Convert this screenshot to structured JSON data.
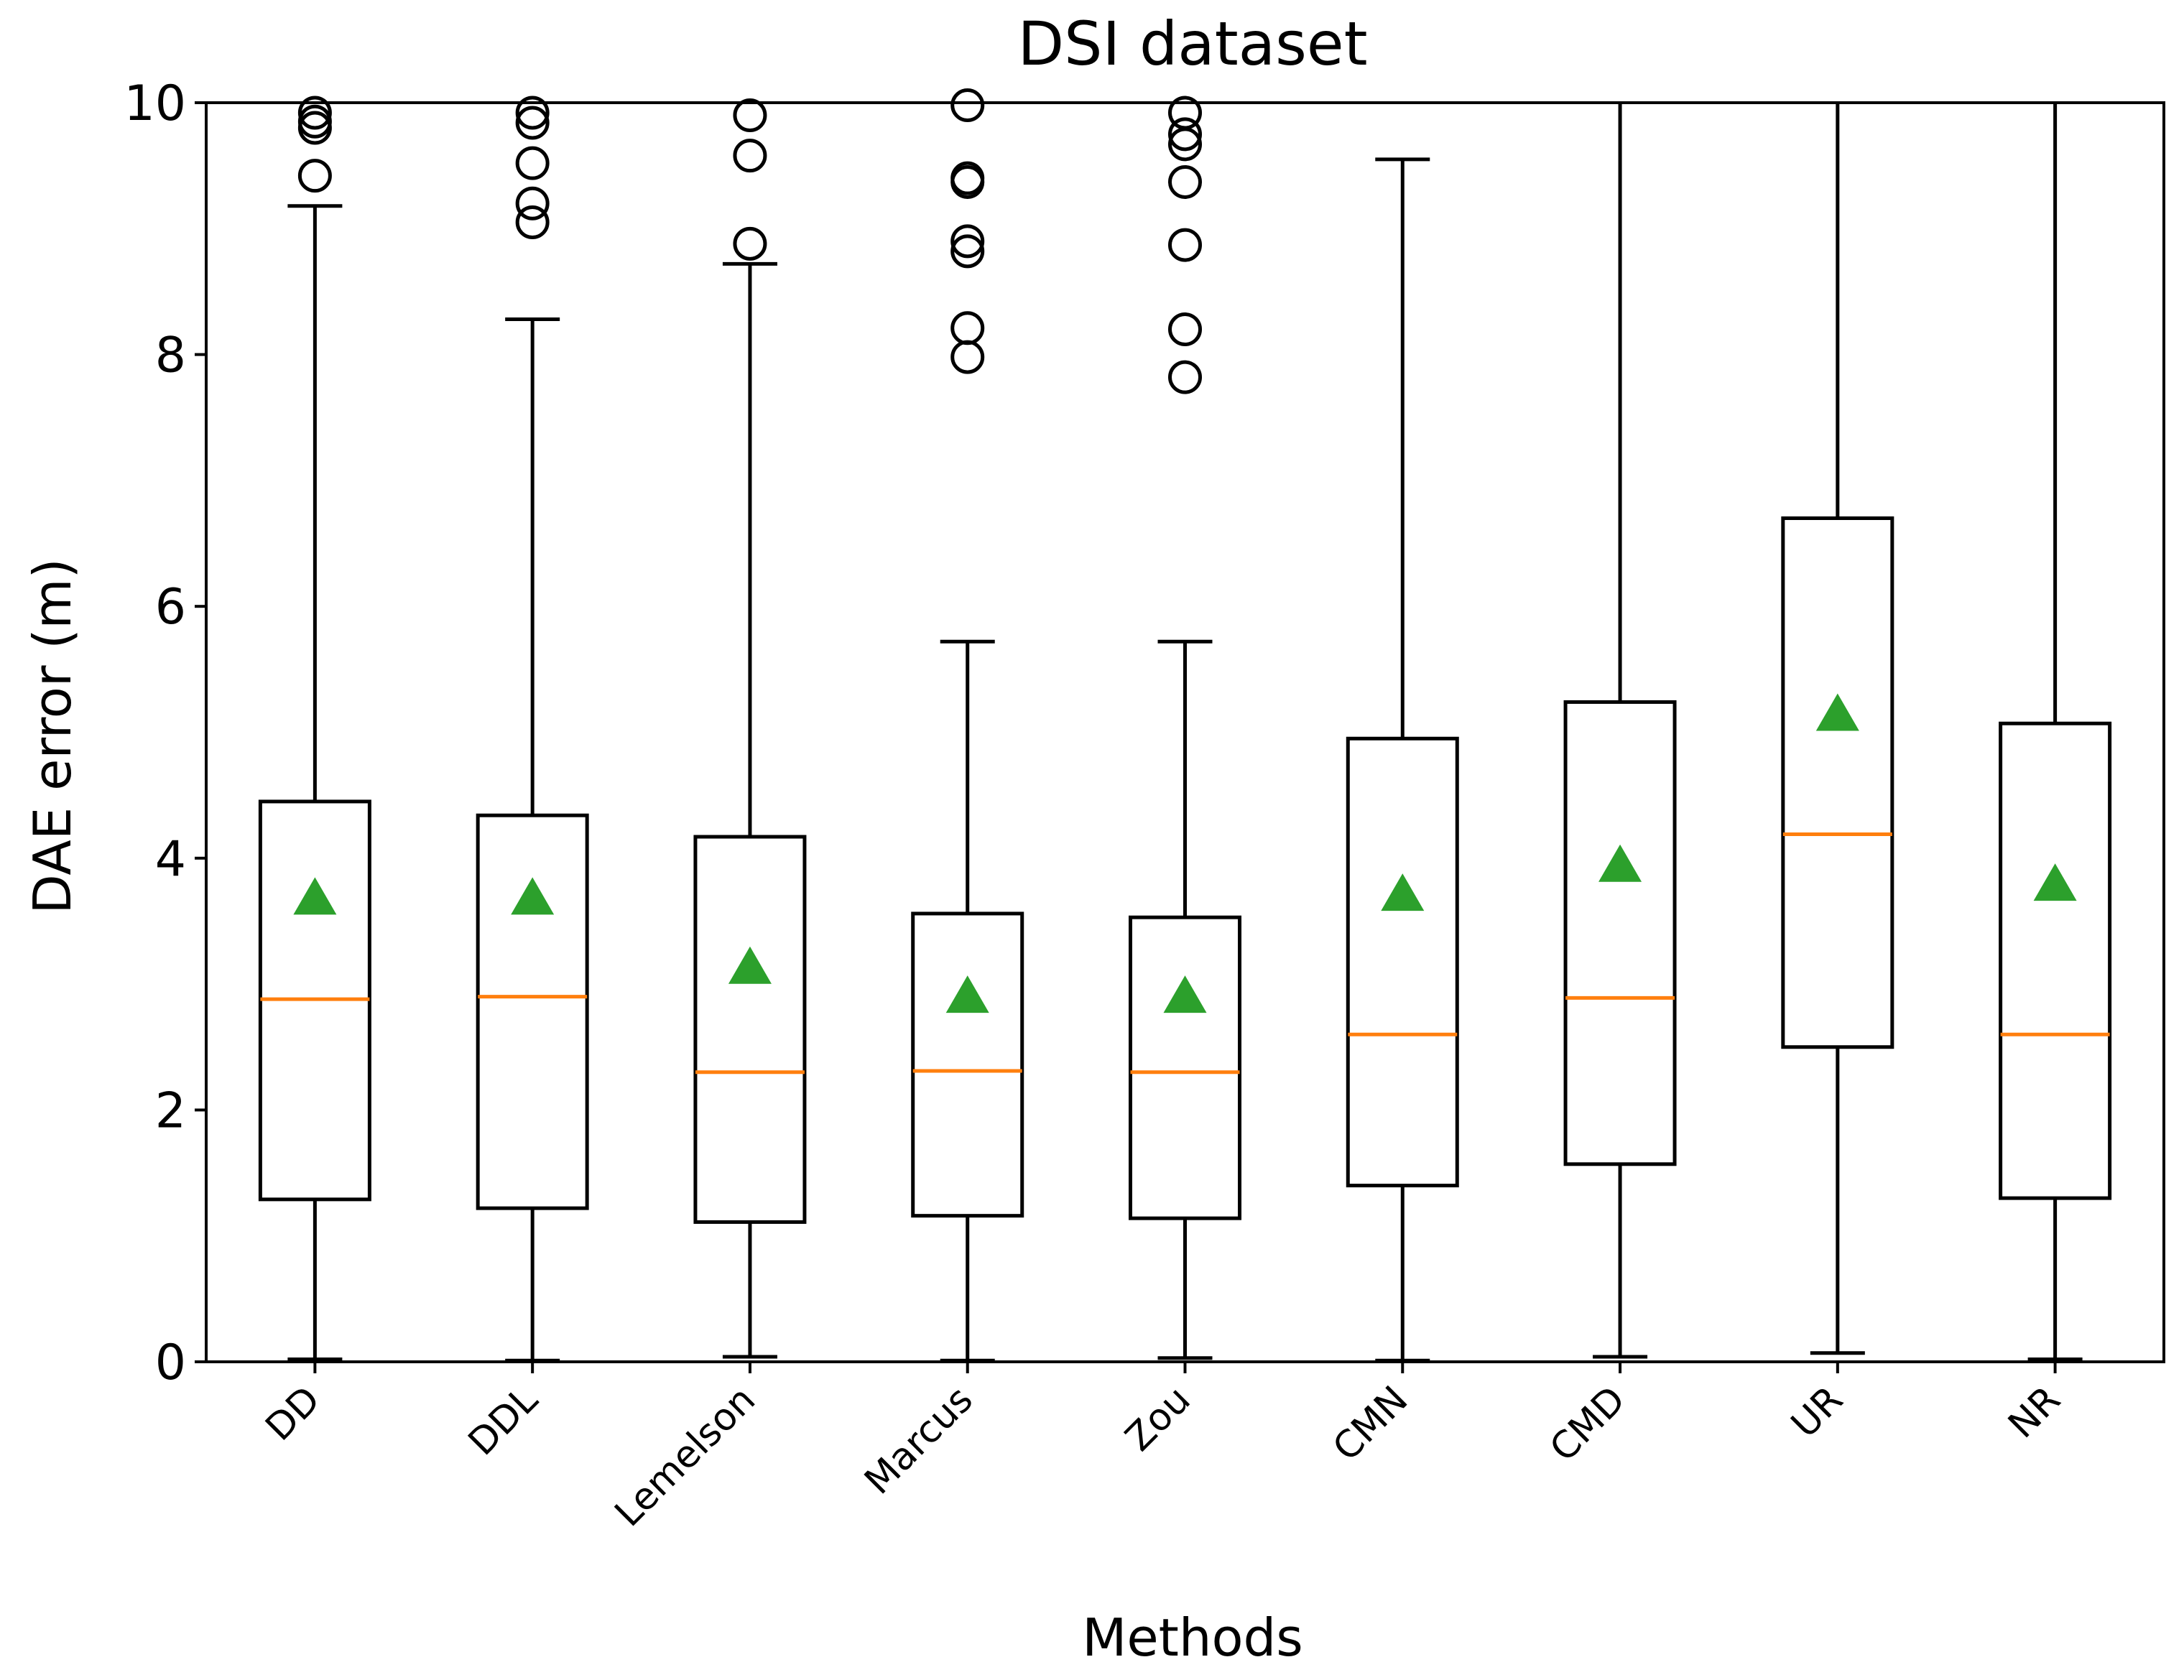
{
  "chart_data": {
    "type": "boxplot",
    "title": "DSI dataset",
    "xlabel": "Methods",
    "ylabel": "DAE error (m)",
    "ylim": [
      0,
      10
    ],
    "yticks": [
      0,
      2,
      4,
      6,
      8,
      10
    ],
    "grid": false,
    "colors": {
      "median": "#ff7f0e",
      "mean": "#2ca02c",
      "box": "#000000"
    },
    "series": [
      {
        "name": "DD",
        "whislo": 0.02,
        "q1": 1.29,
        "med": 2.88,
        "q3": 4.45,
        "whishi": 9.18,
        "mean": 3.7,
        "fliers": [
          9.42,
          9.8,
          9.85,
          9.92
        ]
      },
      {
        "name": "DDL",
        "whislo": 0.01,
        "q1": 1.22,
        "med": 2.9,
        "q3": 4.34,
        "whishi": 8.28,
        "mean": 3.7,
        "fliers": [
          9.05,
          9.2,
          9.52,
          9.84,
          9.92
        ]
      },
      {
        "name": "Lemelson",
        "whislo": 0.04,
        "q1": 1.11,
        "med": 2.3,
        "q3": 4.17,
        "whishi": 8.72,
        "mean": 3.15,
        "fliers": [
          8.88,
          9.58,
          9.9
        ]
      },
      {
        "name": "Marcus",
        "whislo": 0.01,
        "q1": 1.16,
        "med": 2.31,
        "q3": 3.56,
        "whishi": 5.72,
        "mean": 2.92,
        "fliers": [
          7.98,
          8.21,
          8.82,
          8.9,
          9.37,
          9.4,
          9.98
        ]
      },
      {
        "name": "Zou",
        "whislo": 0.03,
        "q1": 1.14,
        "med": 2.3,
        "q3": 3.53,
        "whishi": 5.72,
        "mean": 2.92,
        "fliers": [
          7.82,
          8.2,
          8.87,
          9.37,
          9.67,
          9.75,
          9.92
        ]
      },
      {
        "name": "CMN",
        "whislo": 0.01,
        "q1": 1.4,
        "med": 2.6,
        "q3": 4.95,
        "whishi": 9.55,
        "mean": 3.73,
        "fliers": []
      },
      {
        "name": "CMD",
        "whislo": 0.04,
        "q1": 1.57,
        "med": 2.89,
        "q3": 5.24,
        "whishi": 10.0,
        "mean": 3.96,
        "fliers": []
      },
      {
        "name": "UR",
        "whislo": 0.07,
        "q1": 2.5,
        "med": 4.19,
        "q3": 6.7,
        "whishi": 10.0,
        "mean": 5.16,
        "fliers": []
      },
      {
        "name": "NR",
        "whislo": 0.02,
        "q1": 1.3,
        "med": 2.6,
        "q3": 5.07,
        "whishi": 10.0,
        "mean": 3.81,
        "fliers": []
      }
    ]
  }
}
